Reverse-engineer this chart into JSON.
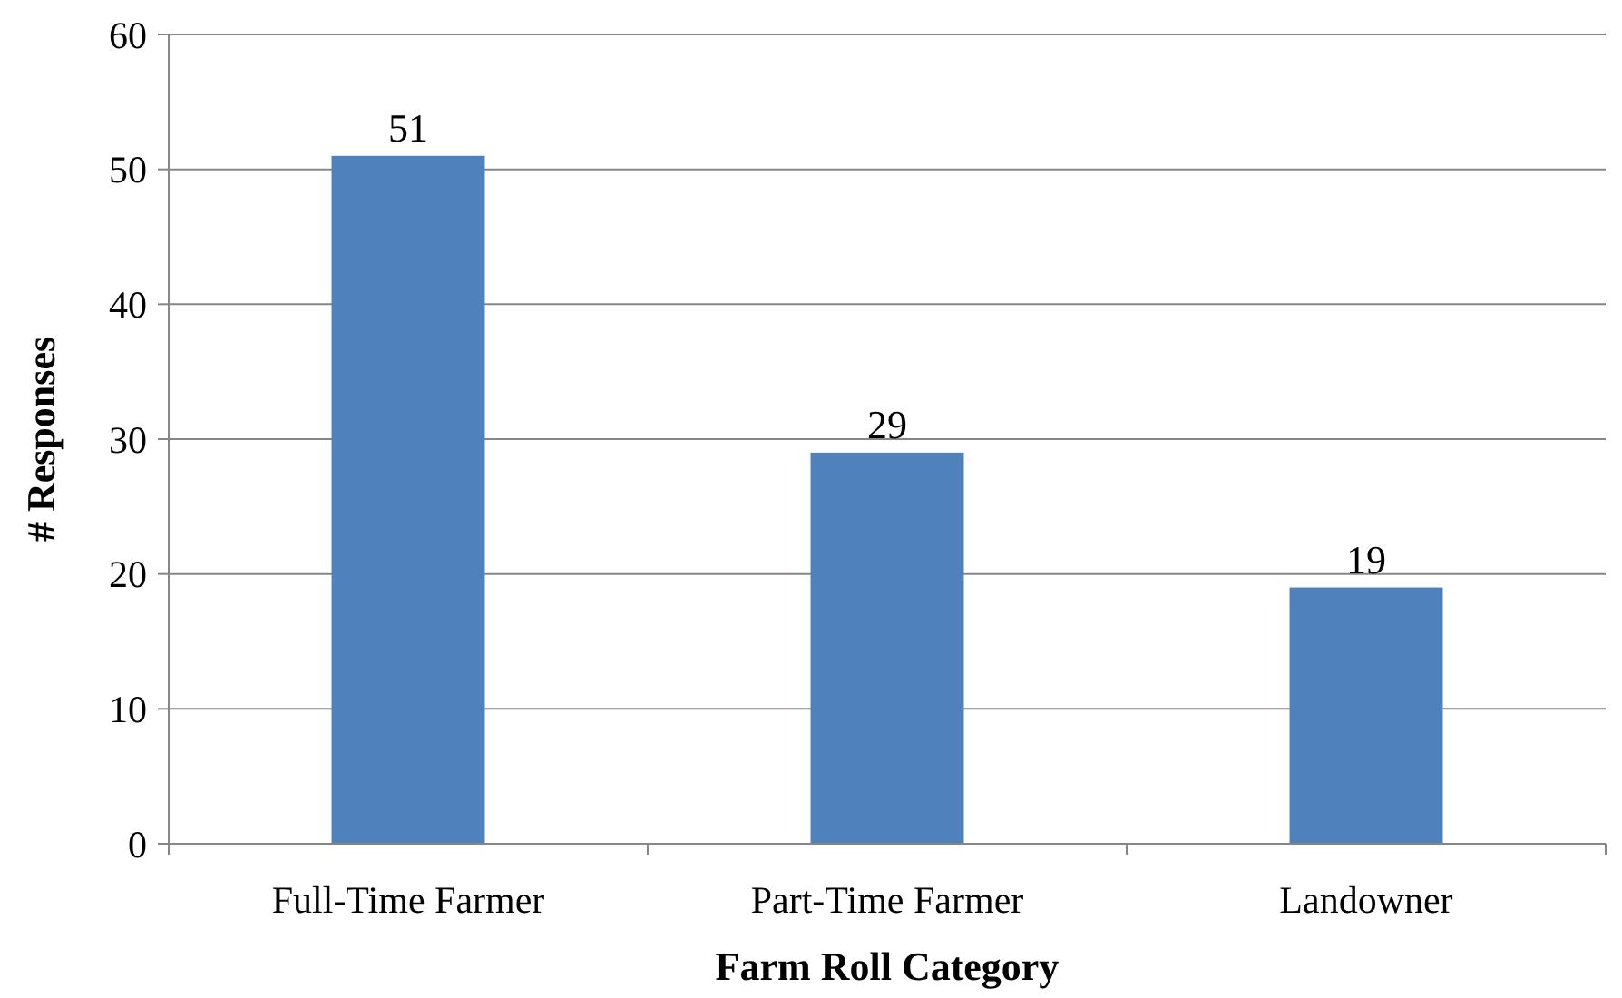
{
  "chart_data": {
    "type": "bar",
    "xlabel": "Farm Roll Category",
    "ylabel": "# Responses",
    "categories": [
      "Full-Time Farmer",
      "Part-Time Farmer",
      "Landowner"
    ],
    "values": [
      51,
      29,
      19
    ],
    "color": "#4f81bd",
    "ylim": [
      0,
      60
    ],
    "yticks": [
      0,
      10,
      20,
      30,
      40,
      50,
      60
    ],
    "grid": "y",
    "data_labels": true
  }
}
